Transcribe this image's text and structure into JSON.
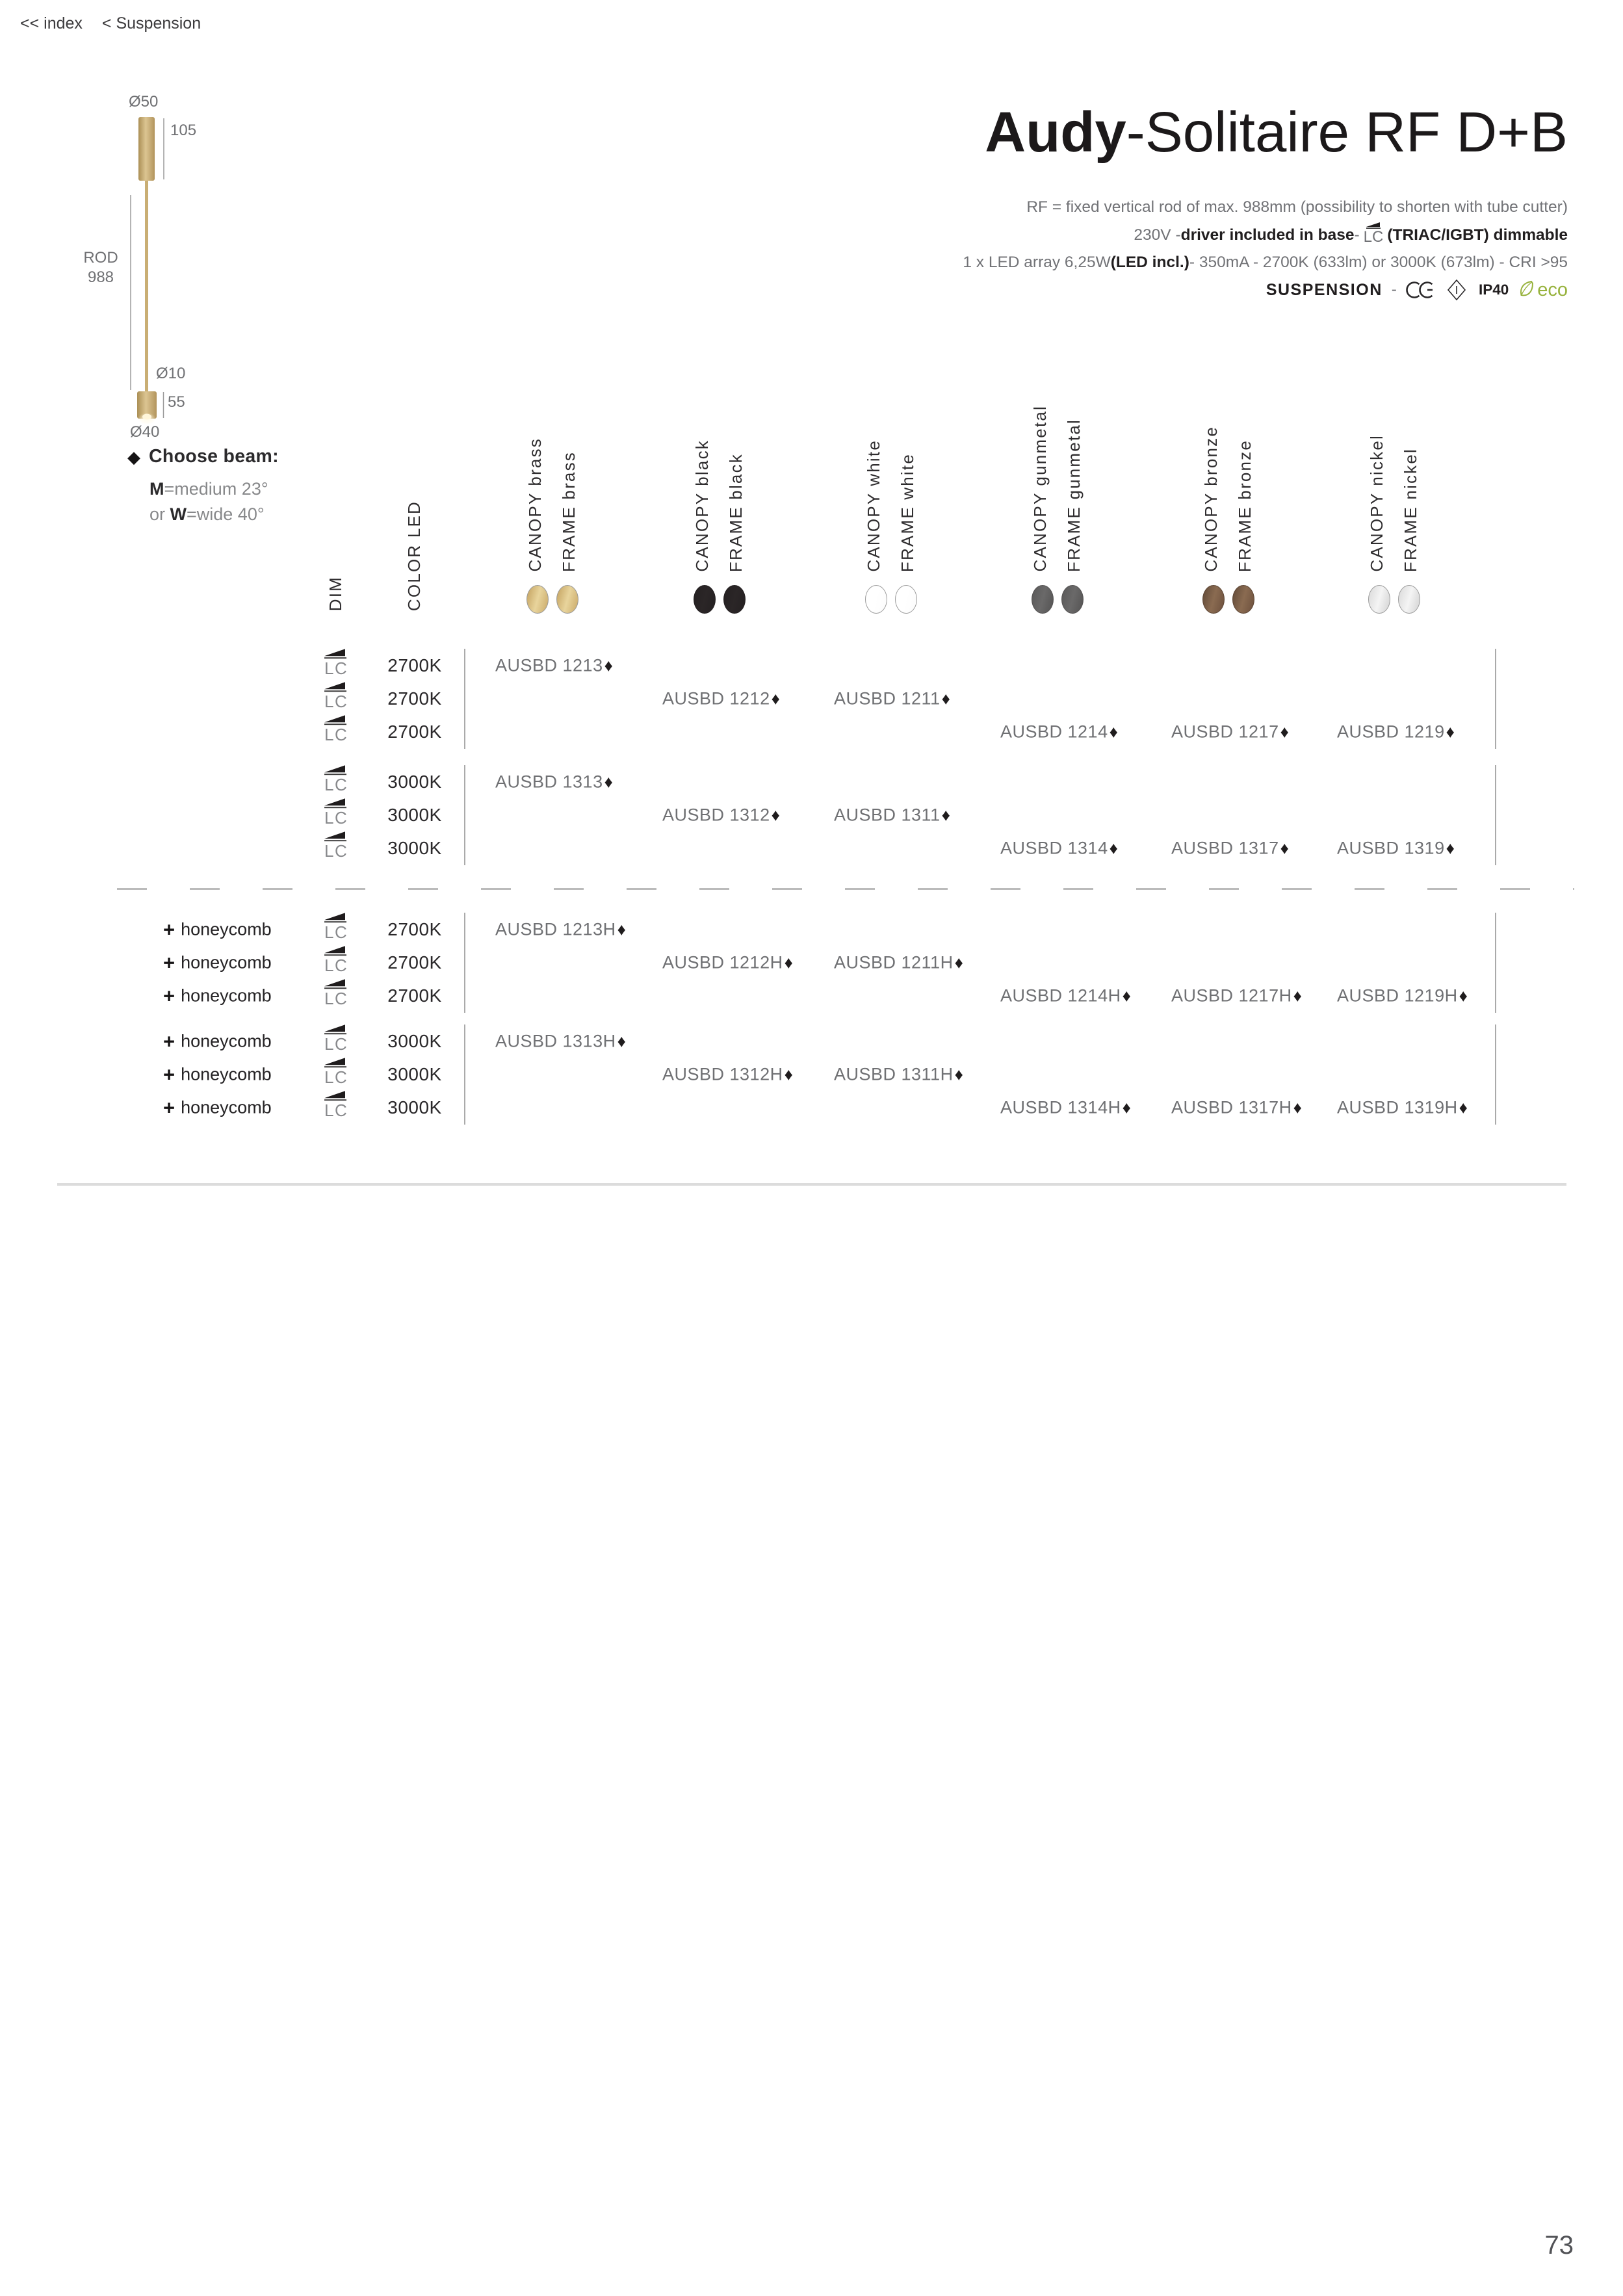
{
  "breadcrumb": {
    "index": "<< index",
    "section": "< Suspension"
  },
  "title": {
    "brand": "Audy",
    "variant": "-Solitaire RF D+B"
  },
  "specs": {
    "line1": "RF = fixed vertical rod of max. 988mm (possibility to shorten with tube cutter)",
    "line2_pre": "230V - ",
    "line2_bold1": "driver included in base",
    "line2_mid": " - ",
    "line2_lc": "LC",
    "line2_bold2": "(TRIAC/IGBT) dimmable",
    "line3_pre": "1 x LED array 6,25W ",
    "line3_bold": "(LED incl.)",
    "line3_post": " - 350mA - 2700K (633lm) or 3000K (673lm) - CRI >95",
    "line4_bold": "SUSPENSION",
    "line4_sep": "-",
    "ip_label": "IP40",
    "eco_label": "eco"
  },
  "diagram": {
    "dia_top": "Ø50",
    "canopy_height": "105",
    "rod_word": "ROD",
    "rod_length": "988",
    "dia_rod": "Ø10",
    "bottom_height": "55",
    "dia_bottom": "Ø40"
  },
  "choose_beam": {
    "diamond": "◆",
    "heading": "Choose beam:",
    "m_key": "M",
    "m_rest": "=medium 23°",
    "w_pre": "or ",
    "w_key": "W",
    "w_rest": "=wide 40°"
  },
  "table": {
    "dim_header": "DIM",
    "color_header": "COLOR LED",
    "dim_value": "LC",
    "honeycomb_plus": "+",
    "honeycomb_label": "honeycomb",
    "diamond": "♦",
    "columns": [
      {
        "canopy_label": "CANOPY brass",
        "frame_label": "FRAME brass",
        "swatch": {
          "g1": "#c3a15e",
          "g2": "#e8d49c",
          "g3": "#caa968",
          "border": "#9b9b9b"
        }
      },
      {
        "canopy_label": "CANOPY black",
        "frame_label": "FRAME black",
        "swatch": {
          "g1": "#242021",
          "g2": "#2b2627",
          "g3": "#242021",
          "border": "#242021"
        }
      },
      {
        "canopy_label": "CANOPY white",
        "frame_label": "FRAME white",
        "swatch": {
          "g1": "#ffffff",
          "g2": "#ffffff",
          "g3": "#fbfbfb",
          "border": "#9c9c9c"
        }
      },
      {
        "canopy_label": "CANOPY gunmetal",
        "frame_label": "FRAME gunmetal",
        "swatch": {
          "g1": "#595858",
          "g2": "#6a6969",
          "g3": "#545353",
          "border": "#555353"
        }
      },
      {
        "canopy_label": "CANOPY bronze",
        "frame_label": "FRAME bronze",
        "swatch": {
          "g1": "#614937",
          "g2": "#8a6b51",
          "g3": "#6d503d",
          "border": "#5d4635"
        }
      },
      {
        "canopy_label": "CANOPY nickel",
        "frame_label": "FRAME nickel",
        "swatch": {
          "g1": "#d9d9d9",
          "g2": "#f4f4f4",
          "g3": "#d2d2d2",
          "border": "#9c9c9c"
        }
      }
    ],
    "groups": [
      {
        "honeycomb": false,
        "color_led": "2700K",
        "rows": [
          [
            "AUSBD 1213",
            null,
            null,
            null,
            null,
            null
          ],
          [
            null,
            "AUSBD 1212",
            "AUSBD 1211",
            null,
            null,
            null
          ],
          [
            null,
            null,
            null,
            "AUSBD 1214",
            "AUSBD 1217",
            "AUSBD 1219"
          ]
        ]
      },
      {
        "honeycomb": false,
        "color_led": "3000K",
        "rows": [
          [
            "AUSBD 1313",
            null,
            null,
            null,
            null,
            null
          ],
          [
            null,
            "AUSBD 1312",
            "AUSBD 1311",
            null,
            null,
            null
          ],
          [
            null,
            null,
            null,
            "AUSBD 1314",
            "AUSBD 1317",
            "AUSBD 1319"
          ]
        ]
      },
      {
        "honeycomb": true,
        "color_led": "2700K",
        "rows": [
          [
            "AUSBD 1213H",
            null,
            null,
            null,
            null,
            null
          ],
          [
            null,
            "AUSBD 1212H",
            "AUSBD 1211H",
            null,
            null,
            null
          ],
          [
            null,
            null,
            null,
            "AUSBD 1214H",
            "AUSBD 1217H",
            "AUSBD 1219H"
          ]
        ]
      },
      {
        "honeycomb": true,
        "color_led": "3000K",
        "rows": [
          [
            "AUSBD 1313H",
            null,
            null,
            null,
            null,
            null
          ],
          [
            null,
            "AUSBD 1312H",
            "AUSBD 1311H",
            null,
            null,
            null
          ],
          [
            null,
            null,
            null,
            "AUSBD 1314H",
            "AUSBD 1317H",
            "AUSBD 1319H"
          ]
        ]
      }
    ]
  },
  "page_number": "73"
}
